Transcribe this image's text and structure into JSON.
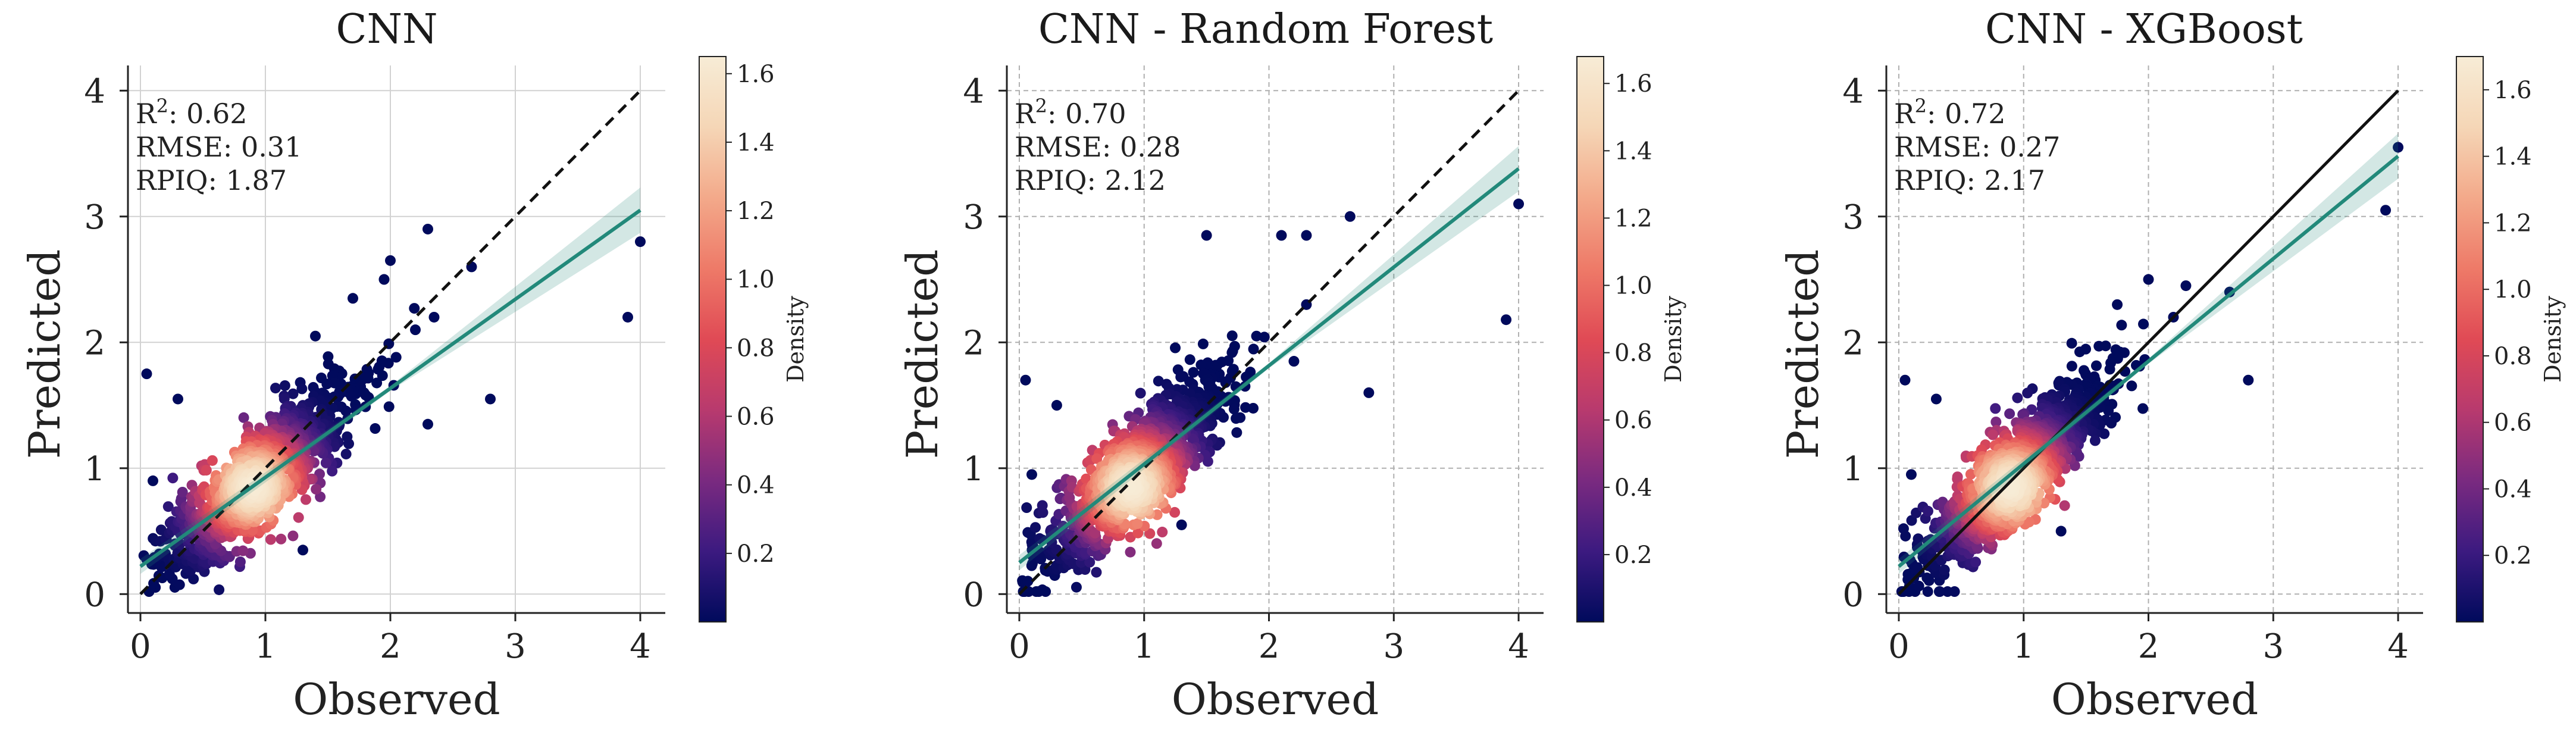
{
  "figure": {
    "description_free": true
  },
  "colorbar": {
    "label": "Density",
    "stops": [
      "#000a5c",
      "#3c1a80",
      "#7a2a80",
      "#b83a6e",
      "#e04a55",
      "#ee7a68",
      "#f3a98a",
      "#f5d6b6",
      "#f7ecd6"
    ]
  },
  "chart_data": [
    {
      "type": "scatter",
      "title": "CNN",
      "xlabel": "Observed",
      "ylabel": "Predicted",
      "xlim": [
        -0.1,
        4.2
      ],
      "ylim": [
        -0.15,
        4.2
      ],
      "xticks": [
        "0",
        "1",
        "2",
        "3",
        "4"
      ],
      "yticks": [
        "0",
        "1",
        "2",
        "3",
        "4"
      ],
      "grid": "solid",
      "identity_line_style": "dashed",
      "regression": {
        "x": [
          0,
          4
        ],
        "y": [
          0.22,
          3.05
        ],
        "color": "#22897a"
      },
      "stats": [
        {
          "name": "R",
          "sup": "2",
          "value": ": 0.62"
        },
        {
          "name": "RMSE",
          "sup": "",
          "value": ": 0.31"
        },
        {
          "name": "RPIQ",
          "sup": "",
          "value": ": 1.87"
        }
      ],
      "colorbar_ticks": [
        "0.2",
        "0.4",
        "0.6",
        "0.8",
        "1.0",
        "1.2",
        "1.4",
        "1.6"
      ],
      "colorbar_max": 1.65,
      "outliers": [
        [
          0.05,
          1.75
        ],
        [
          0.3,
          1.55
        ],
        [
          1.4,
          2.05
        ],
        [
          1.7,
          2.35
        ],
        [
          2.0,
          2.65
        ],
        [
          2.3,
          2.9
        ],
        [
          2.65,
          2.6
        ],
        [
          2.8,
          1.55
        ],
        [
          3.9,
          2.2
        ],
        [
          4.0,
          2.8
        ],
        [
          2.3,
          1.35
        ],
        [
          1.3,
          0.35
        ],
        [
          0.1,
          0.9
        ],
        [
          2.2,
          2.1
        ],
        [
          2.35,
          2.2
        ],
        [
          1.95,
          2.5
        ]
      ]
    },
    {
      "type": "scatter",
      "title": "CNN - Random Forest",
      "xlabel": "Observed",
      "ylabel": "Predicted",
      "xlim": [
        -0.1,
        4.2
      ],
      "ylim": [
        -0.15,
        4.2
      ],
      "xticks": [
        "0",
        "1",
        "2",
        "3",
        "4"
      ],
      "yticks": [
        "0",
        "1",
        "2",
        "3",
        "4"
      ],
      "grid": "dashed",
      "identity_line_style": "dashed",
      "regression": {
        "x": [
          0,
          4
        ],
        "y": [
          0.25,
          3.38
        ],
        "color": "#22897a"
      },
      "stats": [
        {
          "name": "R",
          "sup": "2",
          "value": ": 0.70"
        },
        {
          "name": "RMSE",
          "sup": "",
          "value": ": 0.28"
        },
        {
          "name": "RPIQ",
          "sup": "",
          "value": ": 2.12"
        }
      ],
      "colorbar_ticks": [
        "0.2",
        "0.4",
        "0.6",
        "0.8",
        "1.0",
        "1.2",
        "1.4",
        "1.6"
      ],
      "colorbar_max": 1.68,
      "outliers": [
        [
          0.05,
          1.7
        ],
        [
          0.3,
          1.5
        ],
        [
          1.5,
          2.85
        ],
        [
          2.1,
          2.85
        ],
        [
          2.65,
          3.0
        ],
        [
          2.3,
          2.85
        ],
        [
          2.8,
          1.6
        ],
        [
          3.9,
          2.18
        ],
        [
          4.0,
          3.1
        ],
        [
          1.3,
          0.55
        ],
        [
          0.1,
          0.95
        ],
        [
          2.3,
          2.3
        ],
        [
          1.9,
          2.05
        ],
        [
          2.2,
          1.85
        ]
      ]
    },
    {
      "type": "scatter",
      "title": "CNN - XGBoost",
      "xlabel": "Observed",
      "ylabel": "Predicted",
      "xlim": [
        -0.1,
        4.2
      ],
      "ylim": [
        -0.15,
        4.2
      ],
      "xticks": [
        "0",
        "1",
        "2",
        "3",
        "4"
      ],
      "yticks": [
        "0",
        "1",
        "2",
        "3",
        "4"
      ],
      "grid": "dashed",
      "identity_line_style": "solid",
      "regression": {
        "x": [
          0,
          4
        ],
        "y": [
          0.22,
          3.48
        ],
        "color": "#22897a"
      },
      "stats": [
        {
          "name": "R",
          "sup": "2",
          "value": ": 0.72"
        },
        {
          "name": "RMSE",
          "sup": "",
          "value": ": 0.27"
        },
        {
          "name": "RPIQ",
          "sup": "",
          "value": ": 2.17"
        }
      ],
      "colorbar_ticks": [
        "0.2",
        "0.4",
        "0.6",
        "0.8",
        "1.0",
        "1.2",
        "1.4",
        "1.6"
      ],
      "colorbar_max": 1.7,
      "outliers": [
        [
          0.05,
          1.7
        ],
        [
          0.3,
          1.55
        ],
        [
          2.0,
          2.5
        ],
        [
          2.3,
          2.45
        ],
        [
          2.65,
          2.4
        ],
        [
          2.8,
          1.7
        ],
        [
          3.9,
          3.05
        ],
        [
          4.0,
          3.55
        ],
        [
          1.3,
          0.5
        ],
        [
          0.1,
          0.95
        ],
        [
          1.75,
          2.3
        ],
        [
          2.2,
          2.2
        ]
      ]
    }
  ]
}
